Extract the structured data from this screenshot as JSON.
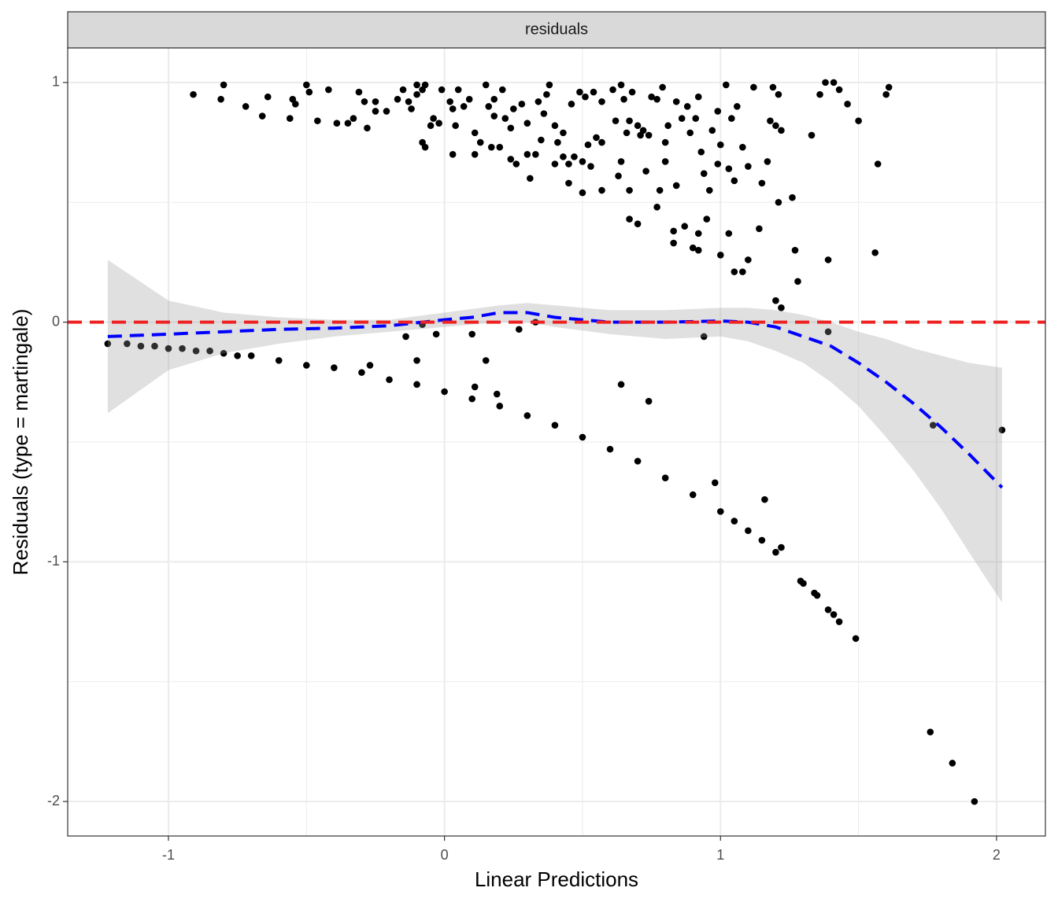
{
  "chart_data": {
    "type": "scatter",
    "facet_label": "residuals",
    "xlabel": "Linear Predictions",
    "ylabel": "Residuals (type = martingale)",
    "xlim": [
      -1.365,
      2.177
    ],
    "ylim": [
      -2.144,
      1.144
    ],
    "xticks": [
      -1,
      0,
      1,
      2
    ],
    "yticks": [
      -2,
      -1,
      0,
      1
    ],
    "xminor": [
      -0.5,
      0.5,
      1.5
    ],
    "yminor": [
      -1.5,
      -0.5,
      0.5
    ],
    "grid": true,
    "points": {
      "color": "#000000",
      "x": [
        -1.22,
        -1.15,
        -1.1,
        -1.05,
        -1.0,
        -0.95,
        -0.9,
        -0.85,
        -0.8,
        -0.75,
        -0.7,
        -0.6,
        -0.5,
        -0.4,
        -0.3,
        -0.2,
        -0.1,
        0,
        0.1,
        0.2,
        0.3,
        0.4,
        0.5,
        0.6,
        0.7,
        0.8,
        0.9,
        1.0,
        1.05,
        1.1,
        1.15,
        1.2,
        1.29,
        1.3,
        1.34,
        1.35,
        1.39,
        1.41,
        1.43,
        1.49,
        1.76,
        1.84,
        1.92,
        0.98,
        1.16,
        1.22,
        0.64,
        0.74,
        0.11,
        0.19,
        0.15,
        -0.1,
        -0.27,
        -0.14,
        -0.03,
        0.1,
        0.33,
        0.27,
        -0.08,
        0.94,
        1.39,
        1.77,
        2.02,
        1.2,
        1.22,
        1.28,
        1.27,
        1.39,
        1.56,
        1.05,
        1.08,
        1.1,
        1.0,
        1.03,
        1.14,
        0.95,
        0.92,
        0.9,
        0.92,
        0.83,
        0.83,
        0.87,
        0.77,
        0.67,
        0.7,
        1.21,
        1.26,
        1.57,
        -0.91,
        -0.81,
        -0.8,
        -0.72,
        -0.66,
        -0.64,
        -0.56,
        -0.55,
        -0.54,
        -0.5,
        -0.49,
        -0.46,
        -0.42,
        -0.39,
        -0.35,
        -0.33,
        -0.31,
        -0.29,
        -0.28,
        -0.25,
        -0.25,
        -0.21,
        -0.17,
        -0.15,
        -0.13,
        -0.12,
        -0.1,
        -0.1,
        -0.08,
        -0.07,
        -0.08,
        -0.07,
        -0.05,
        -0.04,
        -0.02,
        -0.01,
        0.02,
        0.03,
        0.04,
        0.03,
        0.05,
        0.07,
        0.09,
        0.11,
        0.11,
        0.13,
        0.15,
        0.16,
        0.17,
        0.18,
        0.18,
        0.2,
        0.21,
        0.22,
        0.24,
        0.25,
        0.24,
        0.26,
        0.28,
        0.3,
        0.3,
        0.31,
        0.33,
        0.34,
        0.35,
        0.36,
        0.37,
        0.38,
        0.4,
        0.4,
        0.41,
        0.43,
        0.43,
        0.45,
        0.45,
        0.46,
        0.47,
        0.49,
        0.5,
        0.5,
        0.51,
        0.52,
        0.53,
        0.54,
        0.55,
        0.57,
        0.57,
        0.57,
        0.61,
        0.62,
        0.63,
        0.64,
        0.64,
        0.65,
        0.66,
        0.67,
        0.67,
        0.68,
        0.7,
        0.71,
        0.72,
        0.73,
        0.74,
        0.75,
        0.77,
        0.78,
        0.79,
        0.8,
        0.8,
        0.81,
        0.84,
        0.84,
        0.86,
        0.88,
        0.89,
        0.91,
        0.92,
        0.93,
        0.94,
        0.96,
        0.97,
        0.99,
        0.99,
        1.0,
        1.02,
        1.03,
        1.04,
        1.05,
        1.06,
        1.08,
        1.1,
        1.12,
        1.15,
        1.17,
        1.18,
        1.19,
        1.2,
        1.21,
        1.22,
        1.33,
        1.36,
        1.38,
        1.41,
        1.43,
        1.46,
        1.5,
        1.6,
        1.61
      ],
      "y": [
        -0.09,
        -0.09,
        -0.1,
        -0.1,
        -0.11,
        -0.11,
        -0.12,
        -0.12,
        -0.13,
        -0.14,
        -0.14,
        -0.16,
        -0.18,
        -0.19,
        -0.21,
        -0.24,
        -0.26,
        -0.29,
        -0.32,
        -0.35,
        -0.39,
        -0.43,
        -0.48,
        -0.53,
        -0.58,
        -0.65,
        -0.72,
        -0.79,
        -0.83,
        -0.87,
        -0.91,
        -0.96,
        -1.08,
        -1.09,
        -1.13,
        -1.14,
        -1.2,
        -1.22,
        -1.25,
        -1.32,
        -1.71,
        -1.84,
        -2.0,
        -0.67,
        -0.74,
        -0.94,
        -0.26,
        -0.33,
        -0.27,
        -0.3,
        -0.16,
        -0.16,
        -0.18,
        -0.06,
        -0.05,
        -0.05,
        0,
        -0.03,
        -0.01,
        -0.06,
        -0.04,
        -0.43,
        -0.45,
        0.09,
        0.06,
        0.17,
        0.3,
        0.26,
        0.29,
        0.21,
        0.21,
        0.26,
        0.28,
        0.37,
        0.39,
        0.43,
        0.3,
        0.31,
        0.37,
        0.38,
        0.33,
        0.4,
        0.48,
        0.43,
        0.41,
        0.5,
        0.52,
        0.66,
        0.95,
        0.93,
        0.99,
        0.9,
        0.86,
        0.94,
        0.85,
        0.93,
        0.91,
        0.99,
        0.96,
        0.84,
        0.97,
        0.83,
        0.83,
        0.85,
        0.96,
        0.92,
        0.81,
        0.88,
        0.92,
        0.88,
        0.93,
        0.97,
        0.92,
        0.89,
        0.95,
        0.99,
        0.97,
        0.99,
        0.75,
        0.73,
        0.82,
        0.85,
        0.83,
        0.97,
        0.92,
        0.89,
        0.82,
        0.7,
        0.97,
        0.9,
        0.93,
        0.7,
        0.79,
        0.75,
        0.99,
        0.9,
        0.73,
        0.86,
        0.93,
        0.73,
        0.97,
        0.85,
        0.81,
        0.89,
        0.68,
        0.66,
        0.91,
        0.83,
        0.7,
        0.6,
        0.7,
        0.92,
        0.76,
        0.87,
        0.95,
        0.99,
        0.82,
        0.66,
        0.75,
        0.69,
        0.79,
        0.66,
        0.58,
        0.91,
        0.69,
        0.96,
        0.54,
        0.67,
        0.94,
        0.74,
        0.65,
        0.96,
        0.77,
        0.75,
        0.55,
        0.92,
        0.97,
        0.84,
        0.61,
        0.99,
        0.67,
        0.93,
        0.79,
        0.84,
        0.55,
        0.96,
        0.82,
        0.78,
        0.8,
        0.63,
        0.78,
        0.94,
        0.93,
        0.55,
        0.98,
        0.75,
        0.67,
        0.82,
        0.57,
        0.92,
        0.85,
        0.9,
        0.79,
        0.85,
        0.94,
        0.71,
        0.62,
        0.55,
        0.8,
        0.66,
        0.88,
        0.74,
        0.99,
        0.64,
        0.85,
        0.59,
        0.9,
        0.73,
        0.65,
        0.98,
        0.58,
        0.67,
        0.84,
        0.98,
        0.82,
        0.95,
        0.8,
        0.78,
        0.95,
        1.0,
        1.0,
        0.97,
        0.91,
        0.84,
        0.95,
        0.98
      ]
    },
    "band": {
      "color": "#999999",
      "x": [
        -1.22,
        -1.0,
        -0.8,
        -0.6,
        -0.4,
        -0.2,
        0,
        0.2,
        0.3,
        0.4,
        0.6,
        0.8,
        1.0,
        1.1,
        1.2,
        1.3,
        1.4,
        1.5,
        1.6,
        1.7,
        1.8,
        1.9,
        2.02
      ],
      "upper": [
        0.26,
        0.09,
        0.04,
        0.02,
        0.01,
        0.01,
        0.04,
        0.07,
        0.08,
        0.07,
        0.05,
        0.05,
        0.06,
        0.06,
        0.05,
        0.03,
        0.0,
        -0.04,
        -0.07,
        -0.11,
        -0.14,
        -0.17,
        -0.19
      ],
      "lower": [
        -0.38,
        -0.2,
        -0.13,
        -0.09,
        -0.06,
        -0.04,
        -0.02,
        0,
        0.0,
        -0.02,
        -0.05,
        -0.07,
        -0.06,
        -0.08,
        -0.12,
        -0.17,
        -0.25,
        -0.35,
        -0.48,
        -0.62,
        -0.78,
        -0.96,
        -1.17
      ]
    },
    "smooth": {
      "color": "#0000ff",
      "x": [
        -1.22,
        -1,
        -0.8,
        -0.6,
        -0.4,
        -0.2,
        0,
        0.1,
        0.2,
        0.3,
        0.4,
        0.5,
        0.6,
        0.8,
        1.0,
        1.1,
        1.2,
        1.3,
        1.4,
        1.5,
        1.6,
        1.7,
        1.8,
        1.9,
        2.02
      ],
      "y": [
        -0.06,
        -0.05,
        -0.04,
        -0.03,
        -0.025,
        -0.015,
        0.01,
        0.02,
        0.04,
        0.04,
        0.02,
        0.01,
        0,
        0,
        0.005,
        0,
        -0.02,
        -0.06,
        -0.1,
        -0.17,
        -0.25,
        -0.34,
        -0.44,
        -0.55,
        -0.69
      ]
    },
    "hline": {
      "value": 0,
      "color": "#ee2222"
    }
  }
}
